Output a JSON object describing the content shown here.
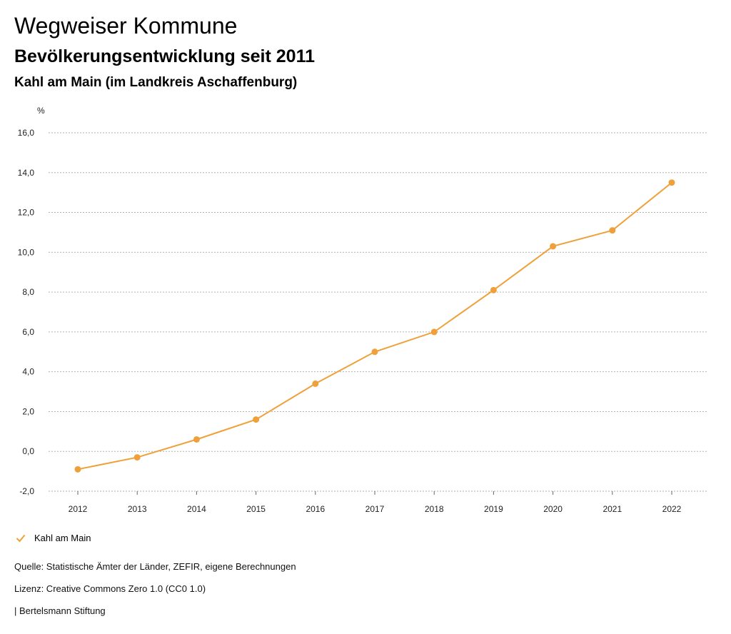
{
  "header": {
    "title": "Wegweiser Kommune",
    "subtitle": "Bevölkerungsentwicklung seit 2011",
    "region": "Kahl am Main (im Landkreis Aschaffenburg)"
  },
  "chart_data": {
    "type": "line",
    "title": "Bevölkerungsentwicklung seit 2011",
    "xlabel": "",
    "ylabel": "%",
    "x": [
      "2012",
      "2013",
      "2014",
      "2015",
      "2016",
      "2017",
      "2018",
      "2019",
      "2020",
      "2021",
      "2022"
    ],
    "ylim": [
      -2.0,
      16.0
    ],
    "yticks": [
      -2.0,
      0.0,
      2.0,
      4.0,
      6.0,
      8.0,
      10.0,
      12.0,
      14.0,
      16.0
    ],
    "ytick_labels": [
      "-2,0",
      "0,0",
      "2,0",
      "4,0",
      "6,0",
      "8,0",
      "10,0",
      "12,0",
      "14,0",
      "16,0"
    ],
    "grid": true,
    "legend_position": "bottom-left",
    "series": [
      {
        "name": "Kahl am Main",
        "color": "#f0a03a",
        "values": [
          -0.9,
          -0.3,
          0.6,
          1.6,
          3.4,
          5.0,
          6.0,
          8.1,
          10.3,
          11.1,
          13.5
        ]
      }
    ]
  },
  "legend": {
    "label": "Kahl am Main",
    "icon": "check-icon",
    "color": "#f0a03a"
  },
  "footer": {
    "source": "Quelle: Statistische Ämter der Länder, ZEFIR, eigene Berechnungen",
    "license": "Lizenz: Creative Commons Zero 1.0 (CC0 1.0)",
    "organization": "| Bertelsmann Stiftung"
  }
}
